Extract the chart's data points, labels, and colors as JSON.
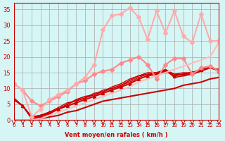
{
  "xlabel": "Vent moyen/en rafales ( km/h )",
  "ylabel": "",
  "xlim": [
    0,
    23
  ],
  "ylim": [
    0,
    37
  ],
  "xticks": [
    0,
    1,
    2,
    3,
    4,
    5,
    6,
    7,
    8,
    9,
    10,
    11,
    12,
    13,
    14,
    15,
    16,
    17,
    18,
    19,
    20,
    21,
    22,
    23
  ],
  "yticks": [
    0,
    5,
    10,
    15,
    20,
    25,
    30,
    35
  ],
  "bg_color": "#d6f5f5",
  "grid_color": "#aaaaaa",
  "series": [
    {
      "x": [
        0,
        1,
        2,
        3,
        4,
        5,
        6,
        7,
        8,
        9,
        10,
        11,
        12,
        13,
        14,
        15,
        16,
        17,
        18,
        19,
        20,
        21,
        22,
        23
      ],
      "y": [
        6.5,
        4.5,
        1.0,
        1.5,
        2.5,
        3.5,
        4.5,
        5.5,
        6.5,
        7.5,
        8.5,
        9.5,
        10.5,
        11.5,
        13.0,
        14.0,
        14.5,
        15.5,
        14.0,
        14.5,
        15.0,
        16.0,
        17.0,
        15.5
      ],
      "color": "#cc0000",
      "lw": 1.5,
      "marker": "^",
      "ms": 3
    },
    {
      "x": [
        0,
        1,
        2,
        3,
        4,
        5,
        6,
        7,
        8,
        9,
        10,
        11,
        12,
        13,
        14,
        15,
        16,
        17,
        18,
        19,
        20,
        21,
        22,
        23
      ],
      "y": [
        7.0,
        4.5,
        0.5,
        1.0,
        2.0,
        3.5,
        5.0,
        6.5,
        7.5,
        8.0,
        9.0,
        10.0,
        11.0,
        12.5,
        14.0,
        14.5,
        14.5,
        16.0,
        13.5,
        14.0,
        14.5,
        15.5,
        16.5,
        16.0
      ],
      "color": "#cc0000",
      "lw": 1.2,
      "marker": null,
      "ms": 0
    },
    {
      "x": [
        0,
        1,
        2,
        3,
        4,
        5,
        6,
        7,
        8,
        9,
        10,
        11,
        12,
        13,
        14,
        15,
        16,
        17,
        18,
        19,
        20,
        21,
        22,
        23
      ],
      "y": [
        6.8,
        4.5,
        0.5,
        1.2,
        2.2,
        3.5,
        5.0,
        6.2,
        7.0,
        8.0,
        9.5,
        10.0,
        11.0,
        12.0,
        13.5,
        14.5,
        15.0,
        15.5,
        14.5,
        14.5,
        14.5,
        15.5,
        16.5,
        15.5
      ],
      "color": "#cc0000",
      "lw": 1.0,
      "marker": null,
      "ms": 0
    },
    {
      "x": [
        0,
        1,
        2,
        3,
        4,
        5,
        6,
        7,
        8,
        9,
        10,
        11,
        12,
        13,
        14,
        15,
        16,
        17,
        18,
        19,
        20,
        21,
        22,
        23
      ],
      "y": [
        6.5,
        4.5,
        0.5,
        1.5,
        2.5,
        4.0,
        5.5,
        6.0,
        7.0,
        8.5,
        9.0,
        10.5,
        11.5,
        13.0,
        14.0,
        15.0,
        15.0,
        16.0,
        14.5,
        15.0,
        15.0,
        16.0,
        17.0,
        15.5
      ],
      "color": "#cc0000",
      "lw": 1.0,
      "marker": null,
      "ms": 0
    },
    {
      "x": [
        0,
        1,
        2,
        3,
        4,
        5,
        6,
        7,
        8,
        9,
        10,
        11,
        12,
        13,
        14,
        15,
        16,
        17,
        18,
        19,
        20,
        21,
        22,
        23
      ],
      "y": [
        11.5,
        9.5,
        6.0,
        4.5,
        6.0,
        7.5,
        9.0,
        11.5,
        12.5,
        14.5,
        15.5,
        16.0,
        18.0,
        19.0,
        20.0,
        17.5,
        13.0,
        17.5,
        19.5,
        19.5,
        14.5,
        16.5,
        17.0,
        15.5
      ],
      "color": "#ff8888",
      "lw": 1.5,
      "marker": "D",
      "ms": 3
    },
    {
      "x": [
        0,
        1,
        2,
        3,
        4,
        5,
        6,
        7,
        8,
        9,
        10,
        11,
        12,
        13,
        14,
        15,
        16,
        17,
        18,
        19,
        20,
        21,
        22,
        23
      ],
      "y": [
        11.5,
        9.5,
        1.0,
        3.5,
        6.5,
        8.0,
        9.5,
        11.5,
        13.5,
        17.5,
        28.5,
        33.0,
        33.5,
        35.5,
        32.5,
        25.5,
        34.5,
        27.5,
        34.5,
        26.5,
        24.5,
        33.5,
        25.0,
        25.0
      ],
      "color": "#ffaaaa",
      "lw": 1.5,
      "marker": "D",
      "ms": 3
    },
    {
      "x": [
        0,
        1,
        2,
        3,
        4,
        5,
        6,
        7,
        8,
        9,
        10,
        11,
        12,
        13,
        14,
        15,
        16,
        17,
        18,
        19,
        20,
        21,
        22,
        23
      ],
      "y": [
        0.0,
        0.0,
        0.0,
        0.5,
        1.0,
        1.5,
        2.5,
        3.0,
        4.0,
        5.0,
        6.0,
        6.5,
        7.0,
        7.5,
        8.0,
        8.5,
        9.0,
        9.5,
        10.0,
        11.0,
        11.5,
        12.0,
        13.0,
        13.5
      ],
      "color": "#cc0000",
      "lw": 1.5,
      "marker": null,
      "ms": 0
    },
    {
      "x": [
        0,
        1,
        2,
        3,
        4,
        5,
        6,
        7,
        8,
        9,
        10,
        11,
        12,
        13,
        14,
        15,
        16,
        17,
        18,
        19,
        20,
        21,
        22,
        23
      ],
      "y": [
        0.0,
        0.0,
        0.0,
        0.5,
        1.5,
        2.5,
        3.5,
        4.5,
        5.5,
        6.5,
        7.5,
        8.5,
        9.5,
        10.5,
        12.0,
        13.0,
        14.0,
        15.0,
        16.0,
        17.0,
        18.0,
        19.0,
        20.0,
        24.5
      ],
      "color": "#ffbbbb",
      "lw": 1.5,
      "marker": null,
      "ms": 0
    }
  ],
  "arrow_color": "#cc0000",
  "label_color": "#cc0000",
  "tick_color": "#cc0000",
  "axis_color": "#cc0000"
}
